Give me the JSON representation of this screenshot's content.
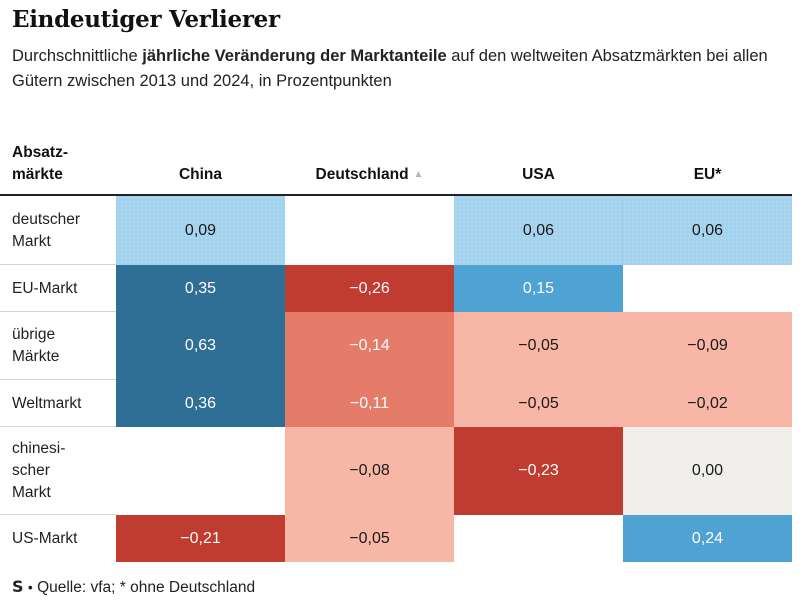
{
  "title": "Eindeutiger Verlierer",
  "subtitle": {
    "part1": "Durchschnittliche ",
    "bold": "jährliche Veränderung der Marktanteile",
    "part2": " auf den weltweiten Absatzmärkten bei allen Gütern zwischen 2013 und 2024, in Prozentpunkten"
  },
  "row_header_label": "Absatz-\nmärkte",
  "footer": {
    "logo": "S",
    "separator": "•",
    "source": "Quelle: vfa; * ohne Deutschland"
  },
  "icons": {
    "sort": "sort-ascending-icon"
  },
  "colors": {
    "dark_blue": "#2f6f96",
    "mid_blue": "#4fa3d2",
    "light_blue": "#a3d2ee",
    "dark_red": "#c03b30",
    "mid_red": "#e57b69",
    "light_red": "#f7b6a6",
    "neutral": "#efeeeb"
  },
  "chart_data": {
    "type": "table",
    "columns": [
      "China",
      "Deutschland",
      "USA",
      "EU*"
    ],
    "sorted_column": "Deutschland",
    "rows": [
      {
        "label": "deutscher\nMarkt",
        "values": [
          "0,09",
          "",
          "0,06",
          "0,06"
        ]
      },
      {
        "label": "EU-Markt",
        "values": [
          "0,35",
          "−0,26",
          "0,15",
          ""
        ]
      },
      {
        "label": "übrige\nMärkte",
        "values": [
          "0,63",
          "−0,14",
          "−0,05",
          "−0,09"
        ]
      },
      {
        "label": "Weltmarkt",
        "values": [
          "0,36",
          "−0,11",
          "−0,05",
          "−0,02"
        ]
      },
      {
        "label": "chinesi-\nscher\nMarkt",
        "values": [
          "",
          "−0,08",
          "−0,23",
          "0,00"
        ]
      },
      {
        "label": "US-Markt",
        "values": [
          "−0,21",
          "−0,05",
          "",
          "0,24"
        ]
      }
    ]
  }
}
